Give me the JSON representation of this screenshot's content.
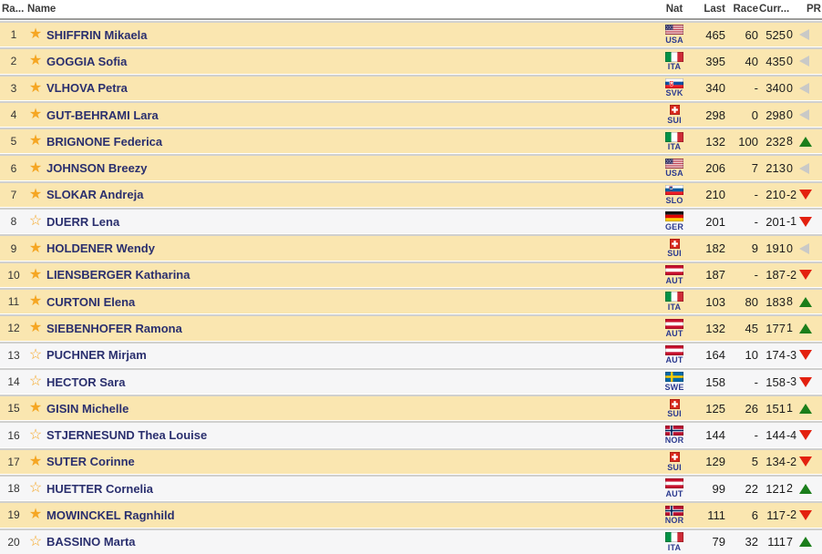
{
  "header": {
    "rank": "Ra...",
    "name": "Name",
    "nat": "Nat",
    "last": "Last",
    "race": "Race",
    "curr": "Curr...",
    "pr": "PR"
  },
  "colors": {
    "row_highlight": "#FAE6B0",
    "row_plain": "#F6F6F7",
    "star_gold": "#F5A623",
    "name_navy": "#2A2F6E",
    "country_code_blue": "#2B3A8F",
    "trend_up": "#1B7E1B",
    "trend_down": "#E3200F",
    "trend_flat": "#C9C9C7"
  },
  "icons": {
    "favorite_on": "star-filled-icon",
    "favorite_off": "star-outline-icon",
    "trend_up": "triangle-up-icon",
    "trend_down": "triangle-down-icon",
    "trend_flat": "triangle-left-icon"
  },
  "rows": [
    {
      "rank": "1",
      "starred": true,
      "name": "SHIFFRIN Mikaela",
      "nat": "USA",
      "last": "465",
      "race": "60",
      "curr": "525",
      "change": "0",
      "trend": "flat"
    },
    {
      "rank": "2",
      "starred": true,
      "name": "GOGGIA Sofia",
      "nat": "ITA",
      "last": "395",
      "race": "40",
      "curr": "435",
      "change": "0",
      "trend": "flat"
    },
    {
      "rank": "3",
      "starred": true,
      "name": "VLHOVA Petra",
      "nat": "SVK",
      "last": "340",
      "race": "-",
      "curr": "340",
      "change": "0",
      "trend": "flat"
    },
    {
      "rank": "4",
      "starred": true,
      "name": "GUT-BEHRAMI Lara",
      "nat": "SUI",
      "last": "298",
      "race": "0",
      "curr": "298",
      "change": "0",
      "trend": "flat"
    },
    {
      "rank": "5",
      "starred": true,
      "name": "BRIGNONE Federica",
      "nat": "ITA",
      "last": "132",
      "race": "100",
      "curr": "232",
      "change": "8",
      "trend": "up"
    },
    {
      "rank": "6",
      "starred": true,
      "name": "JOHNSON Breezy",
      "nat": "USA",
      "last": "206",
      "race": "7",
      "curr": "213",
      "change": "0",
      "trend": "flat"
    },
    {
      "rank": "7",
      "starred": true,
      "name": "SLOKAR Andreja",
      "nat": "SLO",
      "last": "210",
      "race": "-",
      "curr": "210",
      "change": "-2",
      "trend": "down"
    },
    {
      "rank": "8",
      "starred": false,
      "name": "DUERR Lena",
      "nat": "GER",
      "last": "201",
      "race": "-",
      "curr": "201",
      "change": "-1",
      "trend": "down"
    },
    {
      "rank": "9",
      "starred": true,
      "name": "HOLDENER Wendy",
      "nat": "SUI",
      "last": "182",
      "race": "9",
      "curr": "191",
      "change": "0",
      "trend": "flat"
    },
    {
      "rank": "10",
      "starred": true,
      "name": "LIENSBERGER Katharina",
      "nat": "AUT",
      "last": "187",
      "race": "-",
      "curr": "187",
      "change": "-2",
      "trend": "down"
    },
    {
      "rank": "11",
      "starred": true,
      "name": "CURTONI Elena",
      "nat": "ITA",
      "last": "103",
      "race": "80",
      "curr": "183",
      "change": "8",
      "trend": "up"
    },
    {
      "rank": "12",
      "starred": true,
      "name": "SIEBENHOFER Ramona",
      "nat": "AUT",
      "last": "132",
      "race": "45",
      "curr": "177",
      "change": "1",
      "trend": "up"
    },
    {
      "rank": "13",
      "starred": false,
      "name": "PUCHNER Mirjam",
      "nat": "AUT",
      "last": "164",
      "race": "10",
      "curr": "174",
      "change": "-3",
      "trend": "down"
    },
    {
      "rank": "14",
      "starred": false,
      "name": "HECTOR Sara",
      "nat": "SWE",
      "last": "158",
      "race": "-",
      "curr": "158",
      "change": "-3",
      "trend": "down"
    },
    {
      "rank": "15",
      "starred": true,
      "name": "GISIN Michelle",
      "nat": "SUI",
      "last": "125",
      "race": "26",
      "curr": "151",
      "change": "1",
      "trend": "up"
    },
    {
      "rank": "16",
      "starred": false,
      "name": "STJERNESUND Thea Louise",
      "nat": "NOR",
      "last": "144",
      "race": "-",
      "curr": "144",
      "change": "-4",
      "trend": "down"
    },
    {
      "rank": "17",
      "starred": true,
      "name": "SUTER Corinne",
      "nat": "SUI",
      "last": "129",
      "race": "5",
      "curr": "134",
      "change": "-2",
      "trend": "down"
    },
    {
      "rank": "18",
      "starred": false,
      "name": "HUETTER Cornelia",
      "nat": "AUT",
      "last": "99",
      "race": "22",
      "curr": "121",
      "change": "2",
      "trend": "up"
    },
    {
      "rank": "19",
      "starred": true,
      "name": "MOWINCKEL Ragnhild",
      "nat": "NOR",
      "last": "111",
      "race": "6",
      "curr": "117",
      "change": "-2",
      "trend": "down"
    },
    {
      "rank": "20",
      "starred": false,
      "name": "BASSINO Marta",
      "nat": "ITA",
      "last": "79",
      "race": "32",
      "curr": "111",
      "change": "7",
      "trend": "up"
    }
  ]
}
